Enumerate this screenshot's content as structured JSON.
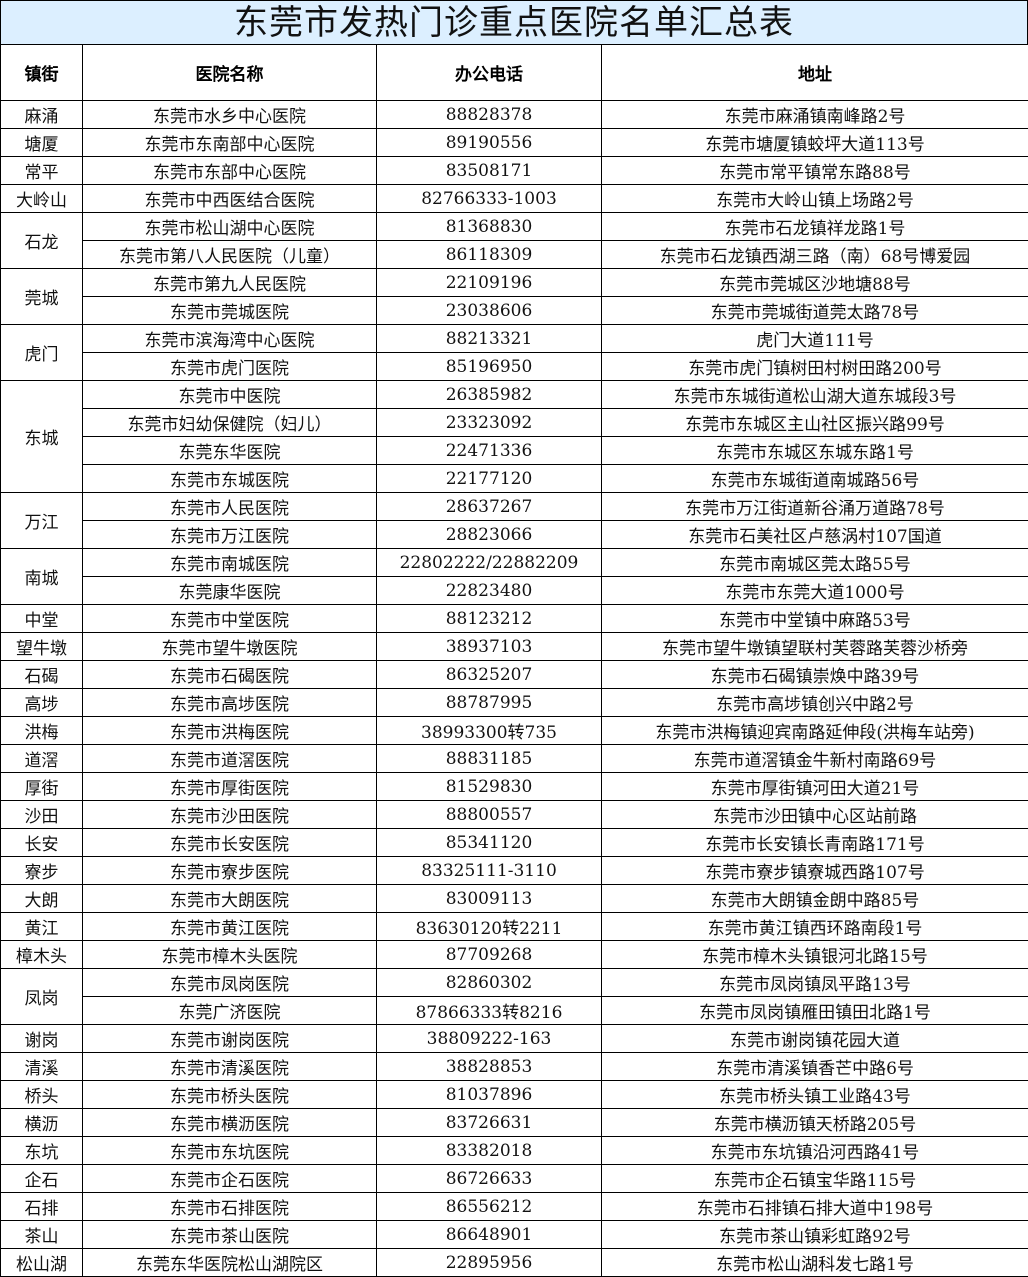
{
  "title": "东莞市发热门诊重点医院名单汇总表",
  "headers": [
    "镇街",
    "医院名称",
    "办公电话",
    "地址"
  ],
  "groups": [
    {
      "district": "麻涌",
      "hospitals": [
        {
          "name": "东莞市水乡中心医院",
          "phone": "88828378",
          "address": "东莞市麻涌镇南峰路2号"
        }
      ]
    },
    {
      "district": "塘厦",
      "hospitals": [
        {
          "name": "东莞市东南部中心医院",
          "phone": "89190556",
          "address": "东莞市塘厦镇蛟坪大道113号"
        }
      ]
    },
    {
      "district": "常平",
      "hospitals": [
        {
          "name": "东莞市东部中心医院",
          "phone": "83508171",
          "address": "东莞市常平镇常东路88号"
        }
      ]
    },
    {
      "district": "大岭山",
      "hospitals": [
        {
          "name": "东莞市中西医结合医院",
          "phone": "82766333-1003",
          "address": "东莞市大岭山镇上场路2号"
        }
      ]
    },
    {
      "district": "石龙",
      "hospitals": [
        {
          "name": "东莞市松山湖中心医院",
          "phone": "81368830",
          "address": "东莞市石龙镇祥龙路1号"
        },
        {
          "name": "东莞市第八人民医院（儿童）",
          "phone": "86118309",
          "address": "东莞市石龙镇西湖三路（南）68号博爱园"
        }
      ]
    },
    {
      "district": "莞城",
      "hospitals": [
        {
          "name": "东莞市第九人民医院",
          "phone": "22109196",
          "address": "东莞市莞城区沙地塘88号"
        },
        {
          "name": "东莞市莞城医院",
          "phone": "23038606",
          "address": "东莞市莞城街道莞太路78号"
        }
      ]
    },
    {
      "district": "虎门",
      "hospitals": [
        {
          "name": "东莞市滨海湾中心医院",
          "phone": "88213321",
          "address": "虎门大道111号"
        },
        {
          "name": "东莞市虎门医院",
          "phone": "85196950",
          "address": "东莞市虎门镇树田村树田路200号"
        }
      ]
    },
    {
      "district": "东城",
      "hospitals": [
        {
          "name": "东莞市中医院",
          "phone": "26385982",
          "address": "东莞市东城街道松山湖大道东城段3号"
        },
        {
          "name": "东莞市妇幼保健院（妇儿）",
          "phone": "23323092",
          "address": "东莞市东城区主山社区振兴路99号"
        },
        {
          "name": "东莞东华医院",
          "phone": "22471336",
          "address": "东莞市东城区东城东路1号"
        },
        {
          "name": "东莞市东城医院",
          "phone": "22177120",
          "address": "东莞市东城街道南城路56号"
        }
      ]
    },
    {
      "district": "万江",
      "hospitals": [
        {
          "name": "东莞市人民医院",
          "phone": "28637267",
          "address": "东莞市万江街道新谷涌万道路78号"
        },
        {
          "name": "东莞市万江医院",
          "phone": "28823066",
          "address": "东莞市石美社区卢慈涡村107国道"
        }
      ]
    },
    {
      "district": "南城",
      "hospitals": [
        {
          "name": "东莞市南城医院",
          "phone": "22802222/22882209",
          "address": "东莞市南城区莞太路55号"
        },
        {
          "name": "东莞康华医院",
          "phone": "22823480",
          "address": "东莞市东莞大道1000号"
        }
      ]
    },
    {
      "district": "中堂",
      "hospitals": [
        {
          "name": "东莞市中堂医院",
          "phone": "88123212",
          "address": "东莞市中堂镇中麻路53号"
        }
      ]
    },
    {
      "district": "望牛墩",
      "hospitals": [
        {
          "name": "东莞市望牛墩医院",
          "phone": "38937103",
          "address": "东莞市望牛墩镇望联村芙蓉路芙蓉沙桥旁"
        }
      ]
    },
    {
      "district": "石碣",
      "hospitals": [
        {
          "name": "东莞市石碣医院",
          "phone": "86325207",
          "address": "东莞市石碣镇崇焕中路39号"
        }
      ]
    },
    {
      "district": "高埗",
      "hospitals": [
        {
          "name": "东莞市高埗医院",
          "phone": "88787995",
          "address": "东莞市高埗镇创兴中路2号"
        }
      ]
    },
    {
      "district": "洪梅",
      "hospitals": [
        {
          "name": "东莞市洪梅医院",
          "phone": "38993300转735",
          "address": "东莞市洪梅镇迎宾南路延伸段(洪梅车站旁)"
        }
      ]
    },
    {
      "district": "道滘",
      "hospitals": [
        {
          "name": "东莞市道滘医院",
          "phone": "88831185",
          "address": "东莞市道滘镇金牛新村南路69号"
        }
      ]
    },
    {
      "district": "厚街",
      "hospitals": [
        {
          "name": "东莞市厚街医院",
          "phone": "81529830",
          "address": "东莞市厚街镇河田大道21号"
        }
      ]
    },
    {
      "district": "沙田",
      "hospitals": [
        {
          "name": "东莞市沙田医院",
          "phone": "88800557",
          "address": "东莞市沙田镇中心区站前路"
        }
      ]
    },
    {
      "district": "长安",
      "hospitals": [
        {
          "name": "东莞市长安医院",
          "phone": "85341120",
          "address": "东莞市长安镇长青南路171号"
        }
      ]
    },
    {
      "district": "寮步",
      "hospitals": [
        {
          "name": "东莞市寮步医院",
          "phone": "83325111-3110",
          "address": "东莞市寮步镇寮城西路107号"
        }
      ]
    },
    {
      "district": "大朗",
      "hospitals": [
        {
          "name": "东莞市大朗医院",
          "phone": "83009113",
          "address": "东莞市大朗镇金朗中路85号"
        }
      ]
    },
    {
      "district": "黄江",
      "hospitals": [
        {
          "name": "东莞市黄江医院",
          "phone": "83630120转2211",
          "address": "东莞市黄江镇西环路南段1号"
        }
      ]
    },
    {
      "district": "樟木头",
      "hospitals": [
        {
          "name": "东莞市樟木头医院",
          "phone": "87709268",
          "address": "东莞市樟木头镇银河北路15号"
        }
      ]
    },
    {
      "district": "凤岗",
      "hospitals": [
        {
          "name": "东莞市凤岗医院",
          "phone": "82860302",
          "address": "东莞市凤岗镇凤平路13号"
        },
        {
          "name": "东莞广济医院",
          "phone": "87866333转8216",
          "address": "东莞市凤岗镇雁田镇田北路1号"
        }
      ]
    },
    {
      "district": "谢岗",
      "hospitals": [
        {
          "name": "东莞市谢岗医院",
          "phone": "38809222-163",
          "address": "东莞市谢岗镇花园大道"
        }
      ]
    },
    {
      "district": "清溪",
      "hospitals": [
        {
          "name": "东莞市清溪医院",
          "phone": "38828853",
          "address": "东莞市清溪镇香芒中路6号"
        }
      ]
    },
    {
      "district": "桥头",
      "hospitals": [
        {
          "name": "东莞市桥头医院",
          "phone": "81037896",
          "address": "东莞市桥头镇工业路43号"
        }
      ]
    },
    {
      "district": "横沥",
      "hospitals": [
        {
          "name": "东莞市横沥医院",
          "phone": "83726631",
          "address": "东莞市横沥镇天桥路205号"
        }
      ]
    },
    {
      "district": "东坑",
      "hospitals": [
        {
          "name": "东莞市东坑医院",
          "phone": "83382018",
          "address": "东莞市东坑镇沿河西路41号"
        }
      ]
    },
    {
      "district": "企石",
      "hospitals": [
        {
          "name": "东莞市企石医院",
          "phone": "86726633",
          "address": "东莞市企石镇宝华路115号"
        }
      ]
    },
    {
      "district": "石排",
      "hospitals": [
        {
          "name": "东莞市石排医院",
          "phone": "86556212",
          "address": "东莞市石排镇石排大道中198号"
        }
      ]
    },
    {
      "district": "茶山",
      "hospitals": [
        {
          "name": "东莞市茶山医院",
          "phone": "86648901",
          "address": "东莞市茶山镇彩虹路92号"
        }
      ]
    },
    {
      "district": "松山湖",
      "hospitals": [
        {
          "name": "东莞东华医院松山湖院区",
          "phone": "22895956",
          "address": "东莞市松山湖科发七路1号"
        }
      ]
    }
  ]
}
